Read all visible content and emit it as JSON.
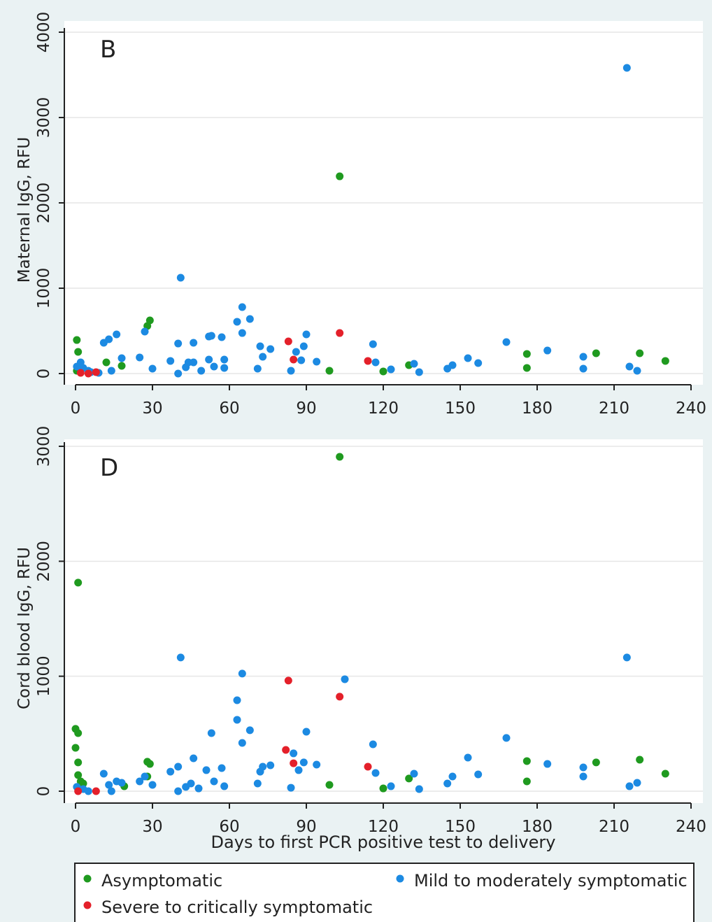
{
  "chart_data": [
    {
      "type": "scatter",
      "annotation": "B",
      "ylabel": "Maternal IgG, RFU",
      "xlim": [
        0,
        240
      ],
      "xticks": [
        0,
        30,
        60,
        90,
        120,
        150,
        180,
        210,
        240
      ],
      "ylim": [
        0,
        4000
      ],
      "yticks": [
        0,
        1000,
        2000,
        3000,
        4000
      ],
      "grid": true,
      "series": [
        {
          "name": "Asymptomatic",
          "color": "#1f9a1f",
          "x": [
            0.5,
            1,
            0.5,
            12,
            18,
            28,
            29,
            103,
            99,
            120,
            130,
            176,
            176,
            203,
            220,
            230
          ],
          "y": [
            393,
            254,
            33,
            131,
            90,
            557,
            623,
            2311,
            33,
            25,
            98,
            230,
            66,
            238,
            238,
            148
          ]
        },
        {
          "name": "Mild to moderately symptomatic",
          "color": "#1c8ae2",
          "x": [
            0.5,
            2,
            3,
            5,
            6,
            9,
            11,
            13,
            14,
            16,
            18,
            25,
            27,
            30,
            37,
            40,
            40,
            41,
            43,
            44,
            46,
            46,
            49,
            52,
            52,
            53,
            54,
            57,
            58,
            58,
            63,
            65,
            65,
            68,
            71,
            72,
            73,
            76,
            84,
            86,
            88,
            89,
            90,
            94,
            116,
            117,
            123,
            132,
            134,
            145,
            147,
            153,
            157,
            168,
            184,
            198,
            198,
            215,
            216,
            219
          ],
          "y": [
            82,
            131,
            66,
            33,
            16,
            8,
            361,
            402,
            33,
            459,
            180,
            189,
            492,
            57,
            148,
            352,
            0,
            1123,
            74,
            131,
            361,
            131,
            33,
            164,
            434,
            443,
            82,
            426,
            164,
            66,
            607,
            779,
            475,
            639,
            57,
            320,
            197,
            287,
            33,
            254,
            156,
            320,
            459,
            139,
            344,
            131,
            49,
            115,
            16,
            57,
            98,
            180,
            123,
            369,
            270,
            197,
            57,
            3582,
            82,
            33
          ]
        },
        {
          "name": "Severe to critically symptomatic",
          "color": "#e4202a",
          "x": [
            2,
            5,
            8,
            83,
            85,
            103,
            114
          ],
          "y": [
            8,
            0,
            16,
            377,
            164,
            475,
            148
          ]
        }
      ]
    },
    {
      "type": "scatter",
      "annotation": "D",
      "ylabel": "Cord blood IgG, RFU",
      "xlabel": "Days to first PCR positive test to delivery",
      "xlim": [
        0,
        240
      ],
      "xticks": [
        0,
        30,
        60,
        90,
        120,
        150,
        180,
        210,
        240
      ],
      "ylim": [
        0,
        3000
      ],
      "yticks": [
        0,
        1000,
        2000,
        3000
      ],
      "grid": true,
      "series": [
        {
          "color": "#1f9a1f",
          "x": [
            1,
            0,
            1,
            0,
            1,
            1,
            2,
            3,
            28,
            29,
            28,
            19,
            103,
            99,
            120,
            130,
            176,
            176,
            203,
            220,
            230
          ],
          "y": [
            1814,
            542,
            505,
            377,
            250,
            140,
            85,
            67,
            256,
            237,
            128,
            43,
            2909,
            55,
            24,
            110,
            262,
            85,
            250,
            274,
            152
          ]
        },
        {
          "color": "#1c8ae2",
          "x": [
            0.5,
            3,
            5,
            11,
            13,
            14,
            16,
            18,
            25,
            27,
            30,
            37,
            40,
            40,
            41,
            43,
            45,
            46,
            48,
            51,
            53,
            54,
            57,
            58,
            63,
            63,
            65,
            65,
            68,
            71,
            72,
            73,
            76,
            84,
            85,
            87,
            89,
            90,
            94,
            105,
            116,
            117,
            123,
            132,
            134,
            145,
            147,
            153,
            157,
            168,
            184,
            198,
            198,
            215,
            216,
            219
          ],
          "y": [
            37,
            18,
            0,
            152,
            55,
            0,
            85,
            73,
            85,
            128,
            55,
            170,
            213,
            0,
            1163,
            37,
            67,
            286,
            24,
            183,
            505,
            85,
            201,
            43,
            791,
            621,
            1023,
            420,
            530,
            67,
            170,
            213,
            225,
            30,
            329,
            183,
            250,
            517,
            231,
            974,
            408,
            158,
            43,
            152,
            18,
            67,
            128,
            292,
            146,
            463,
            237,
            207,
            128,
            1163,
            43,
            73
          ]
        },
        {
          "color": "#e4202a",
          "x": [
            1,
            8,
            83,
            82,
            85,
            103,
            114
          ],
          "y": [
            0,
            0,
            962,
            359,
            243,
            822,
            213
          ]
        }
      ]
    }
  ]
}
